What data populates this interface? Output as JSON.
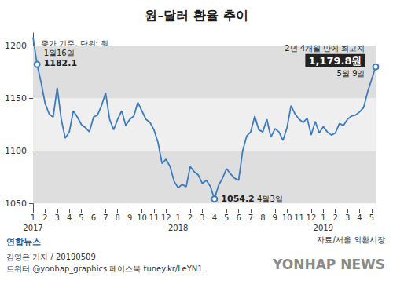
{
  "chart_data": {
    "type": "line",
    "title": "원–달러 환율 추이",
    "subtitle": "종가 기준, 단위: 원",
    "categories": [
      "1\n2017",
      null,
      null,
      "2",
      null,
      null,
      "3",
      null,
      null,
      "4",
      null,
      null,
      "5",
      null,
      null,
      "6",
      null,
      null,
      "7",
      null,
      null,
      "8",
      null,
      null,
      "9",
      null,
      null,
      "10",
      null,
      null,
      "11",
      null,
      null,
      "12",
      null,
      null,
      "1\n2018",
      null,
      null,
      "2",
      null,
      null,
      "3",
      null,
      null,
      "4",
      null,
      null,
      "5",
      null,
      null,
      "6",
      null,
      null,
      "7",
      null,
      null,
      "8",
      null,
      null,
      "9",
      null,
      null,
      "10",
      null,
      null,
      "11",
      null,
      null,
      "12",
      null,
      null,
      "1\n2019",
      null,
      null,
      "2",
      null,
      null,
      "3",
      null,
      null,
      "4",
      null,
      null,
      "5",
      null
    ],
    "values": [
      1208,
      1182.1,
      1165,
      1145,
      1135,
      1132,
      1160,
      1130,
      1112,
      1118,
      1138,
      1132,
      1125,
      1122,
      1118,
      1132,
      1134,
      1143,
      1155,
      1130,
      1120,
      1130,
      1138,
      1124,
      1130,
      1133,
      1146,
      1138,
      1130,
      1127,
      1120,
      1108,
      1088,
      1092,
      1085,
      1071,
      1065,
      1068,
      1066,
      1085,
      1080,
      1077,
      1069,
      1072,
      1066,
      1054.2,
      1067,
      1074,
      1083,
      1078,
      1074,
      1072,
      1100,
      1114,
      1118,
      1133,
      1120,
      1118,
      1130,
      1113,
      1121,
      1118,
      1110,
      1122,
      1143,
      1135,
      1130,
      1127,
      1131,
      1115,
      1128,
      1117,
      1123,
      1118,
      1115,
      1117,
      1126,
      1124,
      1130,
      1133,
      1134,
      1137,
      1141,
      1156,
      1168,
      1179.8
    ],
    "color": "#3d7cc0",
    "ylim": [
      1045,
      1212
    ],
    "yticks": [
      1050,
      1100,
      1150,
      1200
    ],
    "grid": true,
    "annotations": [
      {
        "date": "1월16일",
        "value": 1182.1,
        "value_label": "1182.1"
      },
      {
        "date": "4월3일",
        "value": 1054.2,
        "value_label": "1054.2"
      },
      {
        "date": "5월 9일",
        "value": 1179.8,
        "value_label": "1,179.8원",
        "note": "2년 4개월 만에 최고치"
      }
    ],
    "source": "자료/서울 외환시장",
    "logo": "연합뉴스",
    "credits": [
      "김영은 기자 / 20190509",
      "트위터 @yonhap_graphics 페이스북 tuney.kr/LeYN1"
    ],
    "watermark": "YONHAP NEWS"
  }
}
